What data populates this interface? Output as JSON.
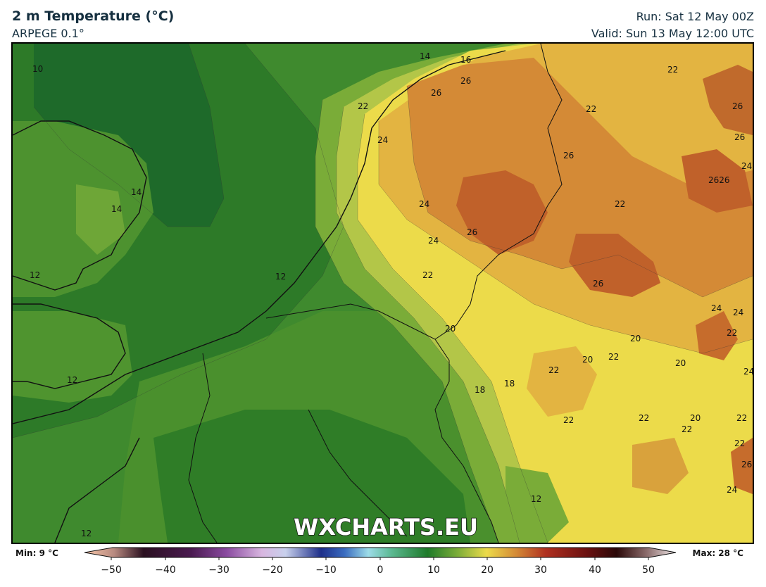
{
  "header": {
    "title": "2 m Temperature (°C)",
    "model": "ARPEGE 0.1°",
    "run": "Run: Sat 12 May 00Z",
    "valid": "Valid: Sun 13 May 12:00 UTC"
  },
  "watermark": "WXCHARTS.EU",
  "colorbar": {
    "min_label": "Min: 9 °C",
    "max_label": "Max: 28 °C",
    "ticks": [
      "−50",
      "−40",
      "−30",
      "−20",
      "−10",
      "0",
      "10",
      "20",
      "30",
      "40",
      "50"
    ]
  },
  "contour_labels": [
    {
      "text": "10"
    },
    {
      "text": "14"
    },
    {
      "text": "16"
    },
    {
      "text": "26"
    },
    {
      "text": "26"
    },
    {
      "text": "22"
    },
    {
      "text": "22"
    },
    {
      "text": "24"
    },
    {
      "text": "22"
    },
    {
      "text": "26"
    },
    {
      "text": "26"
    },
    {
      "text": "26"
    },
    {
      "text": "24"
    },
    {
      "text": "2626"
    },
    {
      "text": "14"
    },
    {
      "text": "14"
    },
    {
      "text": "24"
    },
    {
      "text": "22"
    },
    {
      "text": "26"
    },
    {
      "text": "24"
    },
    {
      "text": "12"
    },
    {
      "text": "12"
    },
    {
      "text": "22"
    },
    {
      "text": "26"
    },
    {
      "text": "24"
    },
    {
      "text": "24"
    },
    {
      "text": "22"
    },
    {
      "text": "20"
    },
    {
      "text": "20"
    },
    {
      "text": "20"
    },
    {
      "text": "22"
    },
    {
      "text": "20"
    },
    {
      "text": "24"
    },
    {
      "text": "12"
    },
    {
      "text": "18"
    },
    {
      "text": "18"
    },
    {
      "text": "22"
    },
    {
      "text": "22"
    },
    {
      "text": "22"
    },
    {
      "text": "20"
    },
    {
      "text": "22"
    },
    {
      "text": "22"
    },
    {
      "text": "22"
    },
    {
      "text": "26"
    },
    {
      "text": "24"
    },
    {
      "text": "12"
    },
    {
      "text": "12"
    }
  ],
  "colors": {
    "deep_green": "#1f6b22",
    "green": "#3a8a2c",
    "light_green": "#6aa336",
    "yellow_green": "#b7c84a",
    "yellow": "#ecdb4a",
    "gold": "#e3b441",
    "orange": "#d48a36",
    "brown_orange": "#c0612a"
  }
}
